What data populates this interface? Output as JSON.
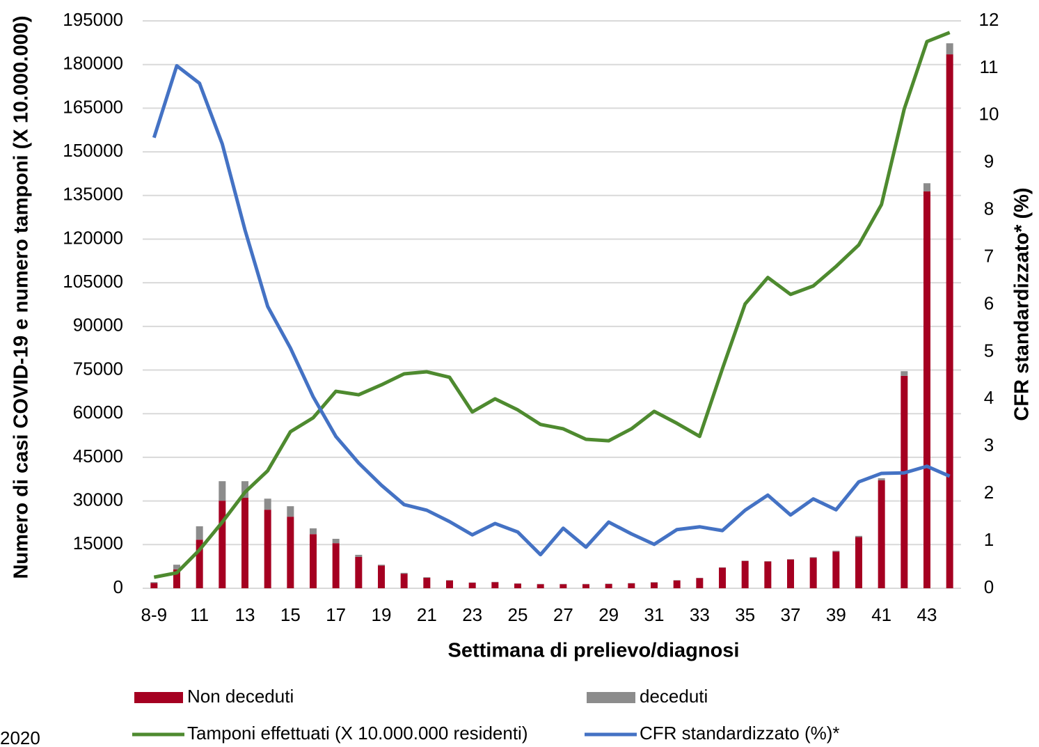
{
  "chart_data": {
    "type": "bar",
    "x_label": "Settimana di prelievo/diagnosi",
    "y_label": "Numero di casi COVID-19 e numero tamponi (X 10.000.000)",
    "y2_label": "CFR standardizzato* (%)",
    "footnote": "2020",
    "categories": [
      "8-9",
      null,
      "11",
      null,
      "13",
      null,
      "15",
      null,
      "17",
      null,
      "19",
      null,
      "21",
      null,
      "23",
      null,
      "25",
      null,
      "27",
      null,
      "29",
      null,
      "31",
      null,
      "33",
      null,
      "35",
      null,
      "37",
      null,
      "39",
      null,
      "41",
      null,
      "43",
      null
    ],
    "series": [
      {
        "name": "Non deceduti",
        "type": "bar",
        "color": "#a50021",
        "values": [
          1800,
          6500,
          16700,
          30100,
          31100,
          27000,
          24600,
          18600,
          15500,
          10800,
          7800,
          5000,
          3600,
          2700,
          1900,
          2100,
          1600,
          1400,
          1400,
          1400,
          1500,
          1700,
          2000,
          2700,
          3500,
          7100,
          9400,
          9200,
          9900,
          10500,
          12600,
          17600,
          37100,
          73000,
          136400,
          183500
        ]
      },
      {
        "name": "deceduti",
        "type": "bar",
        "color": "#8c8c8c",
        "values": [
          300,
          1600,
          4600,
          6700,
          5700,
          3800,
          3600,
          2000,
          1500,
          700,
          300,
          300,
          200,
          100,
          100,
          100,
          100,
          100,
          100,
          100,
          100,
          100,
          100,
          100,
          100,
          100,
          100,
          100,
          100,
          200,
          300,
          400,
          700,
          1600,
          2800,
          3800
        ]
      },
      {
        "name": "Tamponi effettuati (X 10.000.000 residenti)",
        "type": "line",
        "color": "#4e8a2f",
        "values": [
          3800,
          5300,
          13200,
          22700,
          33000,
          40400,
          53800,
          58600,
          67700,
          66500,
          69900,
          73700,
          74400,
          72500,
          60600,
          65100,
          61300,
          56300,
          54800,
          51200,
          50700,
          54800,
          60800,
          56700,
          52200,
          75400,
          97700,
          106800,
          101000,
          103900,
          110600,
          118000,
          131900,
          164700,
          187900,
          191000
        ]
      },
      {
        "name": "CFR standardizzato (%)*",
        "type": "line",
        "axis": "y2",
        "color": "#4472c4",
        "values": [
          9.53,
          11.05,
          10.68,
          9.4,
          7.58,
          5.96,
          5.08,
          4.05,
          3.21,
          2.65,
          2.18,
          1.77,
          1.65,
          1.41,
          1.13,
          1.37,
          1.19,
          0.71,
          1.27,
          0.87,
          1.4,
          1.15,
          0.93,
          1.24,
          1.3,
          1.22,
          1.65,
          1.97,
          1.55,
          1.89,
          1.66,
          2.25,
          2.43,
          2.44,
          2.58,
          2.37
        ]
      }
    ],
    "ylim": [
      0,
      195000
    ],
    "yticks": [
      0,
      15000,
      30000,
      45000,
      60000,
      75000,
      90000,
      105000,
      120000,
      135000,
      150000,
      165000,
      180000,
      195000
    ],
    "y2lim": [
      0,
      12
    ],
    "y2ticks": [
      0,
      1,
      2,
      3,
      4,
      5,
      6,
      7,
      8,
      9,
      10,
      11,
      12
    ],
    "grid": true,
    "stacked": true,
    "legend": "bottom"
  }
}
